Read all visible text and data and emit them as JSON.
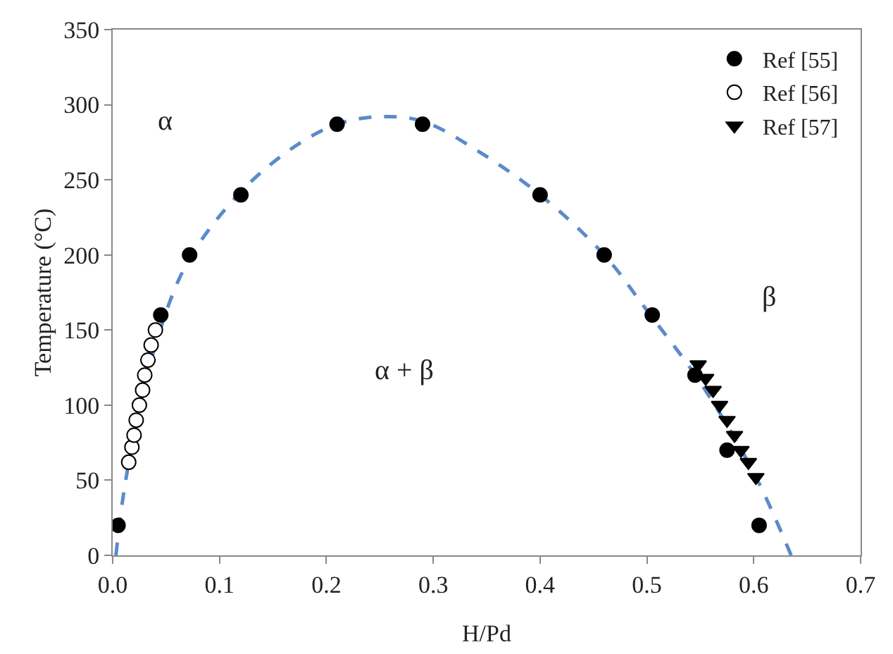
{
  "chart_data": {
    "type": "scatter",
    "xlabel": "H/Pd",
    "ylabel": "Temperature (°C)",
    "xlim": [
      0,
      0.7
    ],
    "xticks": [
      {
        "value": 0,
        "label": "0.0"
      },
      0.1,
      0.2,
      0.3,
      0.4,
      0.5,
      0.6,
      0.7
    ],
    "ylim": [
      0,
      350
    ],
    "yticks": [
      0,
      50,
      100,
      150,
      200,
      250,
      300,
      350
    ],
    "grid": false,
    "legend": "top right",
    "series": [
      {
        "type": "line",
        "color": "#5b8bc9",
        "line_style": "dashed",
        "marker": "none",
        "x": [
          0.003,
          0.01,
          0.02,
          0.04,
          0.07,
          0.12,
          0.17,
          0.21,
          0.25,
          0.29,
          0.34,
          0.4,
          0.46,
          0.5,
          0.55,
          0.6,
          0.635
        ],
        "values": [
          0,
          40,
          80,
          140,
          195,
          242,
          272,
          287,
          292,
          289,
          270,
          240,
          200,
          163,
          115,
          55,
          0
        ]
      },
      {
        "name": "Ref [55]",
        "color": "#000000",
        "marker": "circle",
        "x": [
          0.005,
          0.045,
          0.072,
          0.12,
          0.21,
          0.29,
          0.4,
          0.46,
          0.505,
          0.545,
          0.575,
          0.605
        ],
        "values": [
          20,
          160,
          200,
          240,
          287,
          287,
          240,
          200,
          160,
          120,
          70,
          20
        ]
      },
      {
        "name": "Ref [56]",
        "color": "#ffffff",
        "marker": "circle",
        "x": [
          0.015,
          0.018,
          0.02,
          0.022,
          0.025,
          0.028,
          0.03,
          0.033,
          0.036,
          0.04
        ],
        "values": [
          62,
          72,
          80,
          90,
          100,
          110,
          120,
          130,
          140,
          150
        ]
      },
      {
        "name": "Ref [57]",
        "color": "#000000",
        "marker": "triangle",
        "x": [
          0.548,
          0.555,
          0.562,
          0.568,
          0.575,
          0.582,
          0.588,
          0.595,
          0.602
        ],
        "values": [
          127,
          118,
          110,
          100,
          90,
          80,
          70,
          62,
          52
        ]
      }
    ],
    "annotations": [
      "α",
      "β",
      "α + β"
    ]
  }
}
